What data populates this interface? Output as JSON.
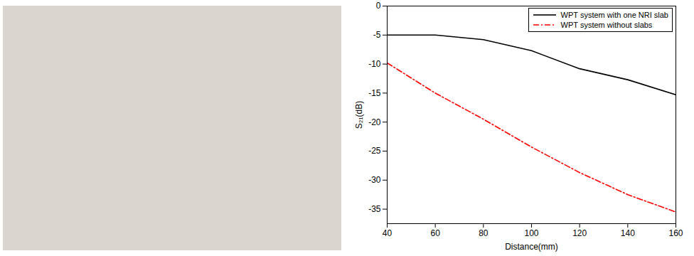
{
  "chart_data": {
    "type": "line",
    "x_label": "Distance(mm)",
    "y_label": "S₂₁(dB)",
    "x": [
      40,
      60,
      80,
      100,
      120,
      140,
      160
    ],
    "series": [
      {
        "name": "WPT system with one NRI slab",
        "color": "#000000",
        "line_style": "solid",
        "values": [
          -5,
          -5,
          -5.8,
          -7.7,
          -10.8,
          -12.7,
          -15.3
        ]
      },
      {
        "name": "WPT system without slabs",
        "color": "#ff0000",
        "line_style": "dashdot",
        "values": [
          -9.8,
          -15,
          -19.5,
          -24.3,
          -28.7,
          -32.5,
          -35.5
        ]
      }
    ],
    "xlim": [
      40,
      160
    ],
    "xticks": [
      40,
      60,
      80,
      100,
      120,
      140,
      160
    ],
    "ylim": [
      -37.5,
      0
    ],
    "yticks": [
      0,
      -5,
      -10,
      -15,
      -20,
      -25,
      -30,
      -35
    ],
    "grid": false,
    "legend": "top-right"
  }
}
